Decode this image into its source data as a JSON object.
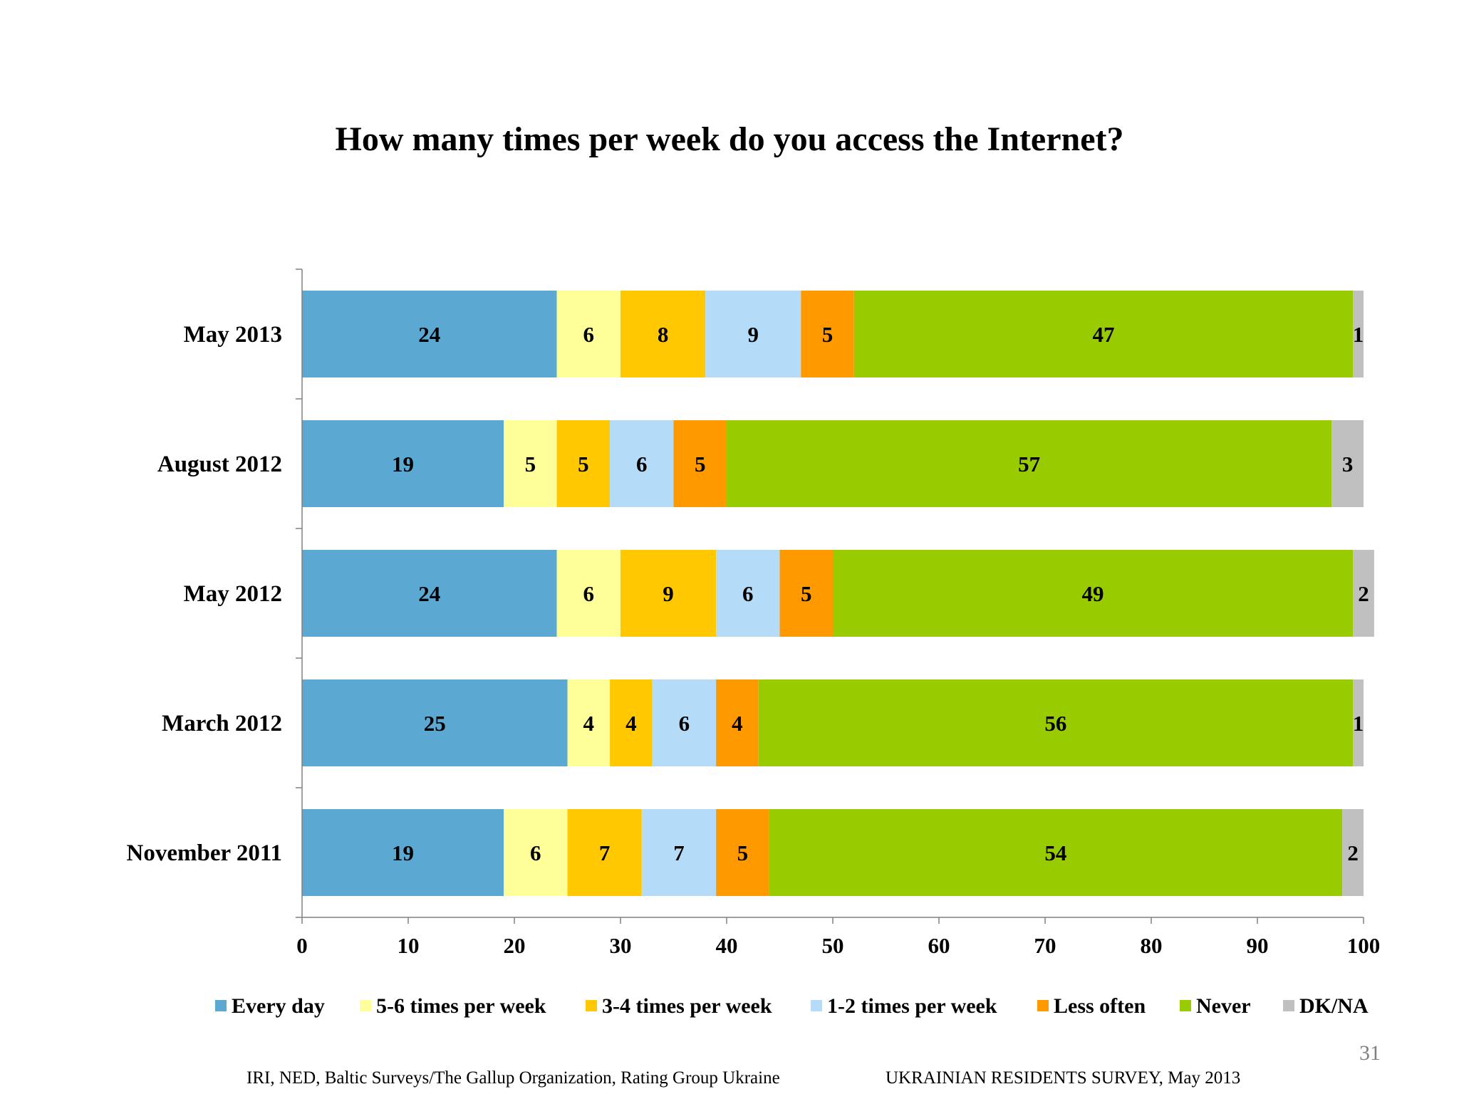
{
  "chart_data": {
    "type": "bar",
    "orientation": "horizontal",
    "stacked": true,
    "title": "How many times per week do you access the Internet?",
    "categories": [
      "May 2013",
      "August 2012",
      "May 2012",
      "March 2012",
      "November 2011"
    ],
    "series": [
      {
        "name": "Every day",
        "color": "#5BA8D2",
        "values": [
          24,
          19,
          24,
          25,
          19
        ]
      },
      {
        "name": "5-6 times per week",
        "color": "#FFFF99",
        "values": [
          6,
          5,
          6,
          4,
          6
        ]
      },
      {
        "name": "3-4 times per week",
        "color": "#FFC800",
        "values": [
          8,
          5,
          9,
          4,
          7
        ]
      },
      {
        "name": "1-2 times per week",
        "color": "#B4DCF8",
        "values": [
          9,
          6,
          6,
          6,
          7
        ]
      },
      {
        "name": "Less often",
        "color": "#FF9900",
        "values": [
          5,
          5,
          5,
          4,
          5
        ]
      },
      {
        "name": "Never",
        "color": "#99CC00",
        "values": [
          47,
          57,
          49,
          56,
          54
        ]
      },
      {
        "name": "DK/NA",
        "color": "#C0C0C0",
        "values": [
          1,
          3,
          2,
          1,
          2
        ]
      }
    ],
    "xlim": [
      0,
      100
    ],
    "xticks": [
      0,
      10,
      20,
      30,
      40,
      50,
      60,
      70,
      80,
      90,
      100
    ],
    "grid": false,
    "legend": "bottom"
  },
  "page_number": "31",
  "footer": {
    "left": "IRI, NED,  Baltic Surveys/The Gallup Organization, Rating Group Ukraine",
    "right": "UKRAINIAN RESIDENTS SURVEY, May  2013"
  }
}
